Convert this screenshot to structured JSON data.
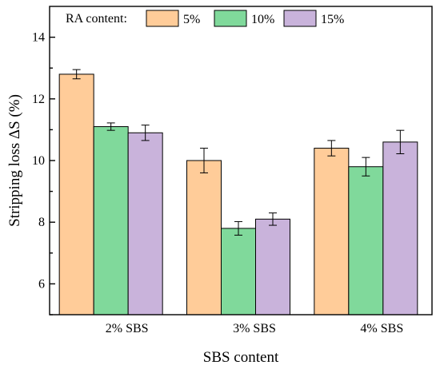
{
  "chart_data": {
    "type": "bar",
    "title": "",
    "xlabel": "SBS content",
    "ylabel": "Stripping loss ΔS (%)",
    "ylim": [
      5,
      15
    ],
    "yticks": [
      6,
      8,
      10,
      12,
      14
    ],
    "categories": [
      "2% SBS",
      "3% SBS",
      "4% SBS"
    ],
    "legend": {
      "title": "RA content:",
      "placement": "top"
    },
    "series": [
      {
        "name": "5%",
        "color": "#FFCC99",
        "values": [
          12.8,
          10.0,
          10.4
        ],
        "errors": [
          0.15,
          0.4,
          0.25
        ]
      },
      {
        "name": "10%",
        "color": "#80D99B",
        "values": [
          11.1,
          7.8,
          9.8
        ],
        "errors": [
          0.12,
          0.22,
          0.3
        ]
      },
      {
        "name": "15%",
        "color": "#C9B3DB",
        "values": [
          10.9,
          8.1,
          10.6
        ],
        "errors": [
          0.25,
          0.2,
          0.38
        ]
      }
    ],
    "grid": false
  }
}
